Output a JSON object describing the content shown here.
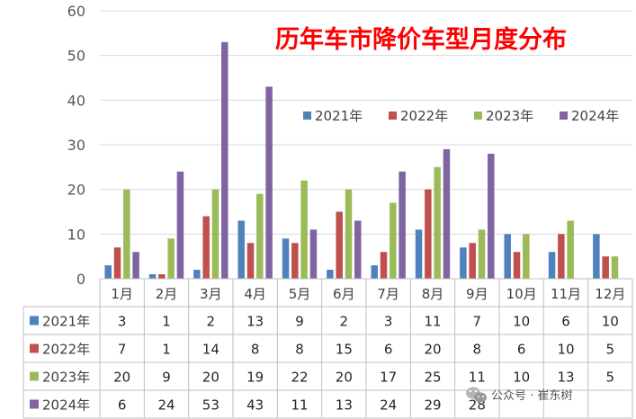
{
  "chart_data": {
    "type": "bar",
    "title": "历年车市降价车型月度分布",
    "categories": [
      "1月",
      "2月",
      "3月",
      "4月",
      "5月",
      "6月",
      "7月",
      "8月",
      "9月",
      "10月",
      "11月",
      "12月"
    ],
    "ylim": [
      0,
      60
    ],
    "yticks": [
      "0",
      "10",
      "20",
      "30",
      "40",
      "50",
      "60"
    ],
    "grid": true,
    "legend_position": "top-right",
    "series": [
      {
        "name": "2021年",
        "color": "#4f81bd",
        "values": [
          3,
          1,
          2,
          13,
          9,
          2,
          3,
          11,
          7,
          10,
          6,
          10
        ]
      },
      {
        "name": "2022年",
        "color": "#c0504d",
        "values": [
          7,
          1,
          14,
          8,
          8,
          15,
          6,
          20,
          8,
          6,
          10,
          5
        ]
      },
      {
        "name": "2023年",
        "color": "#9bbb59",
        "values": [
          20,
          9,
          20,
          19,
          22,
          20,
          17,
          25,
          11,
          10,
          13,
          5
        ]
      },
      {
        "name": "2024年",
        "color": "#8064a2",
        "values": [
          6,
          24,
          53,
          43,
          11,
          13,
          24,
          29,
          28,
          null,
          null,
          null
        ]
      }
    ]
  },
  "watermark": {
    "text": "公众号 · 崔东树",
    "icon": "wechat-icon"
  }
}
